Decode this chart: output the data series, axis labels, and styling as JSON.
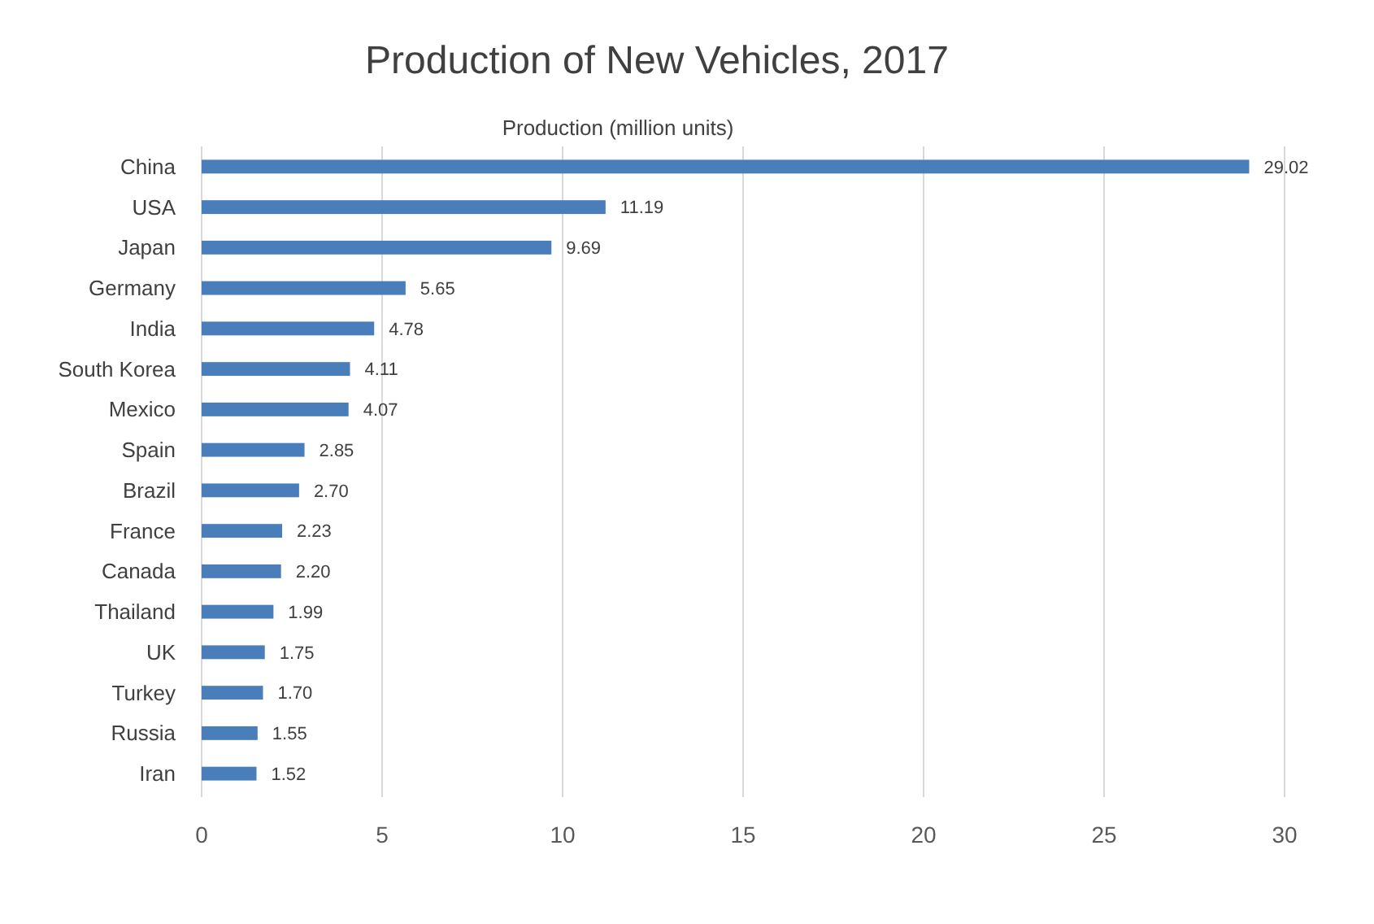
{
  "chart_data": {
    "type": "bar",
    "orientation": "horizontal",
    "title": "Production of New Vehicles, 2017",
    "xlabel": "Production (million units)",
    "categories": [
      "China",
      "USA",
      "Japan",
      "Germany",
      "India",
      "South Korea",
      "Mexico",
      "Spain",
      "Brazil",
      "France",
      "Canada",
      "Thailand",
      "UK",
      "Turkey",
      "Russia",
      "Iran"
    ],
    "values": [
      29.02,
      11.19,
      9.69,
      5.65,
      4.78,
      4.11,
      4.07,
      2.85,
      2.7,
      2.23,
      2.2,
      1.99,
      1.75,
      1.7,
      1.55,
      1.52
    ],
    "value_labels": [
      "29.02",
      "11.19",
      "9.69",
      "5.65",
      "4.78",
      "4.11",
      "4.07",
      "2.85",
      "2.70",
      "2.23",
      "2.20",
      "1.99",
      "1.75",
      "1.70",
      "1.55",
      "1.52"
    ],
    "color": "#4a7ebb",
    "xlim": [
      0,
      30
    ],
    "xticks": [
      0,
      5,
      10,
      15,
      20,
      25,
      30
    ],
    "grid": "x"
  }
}
